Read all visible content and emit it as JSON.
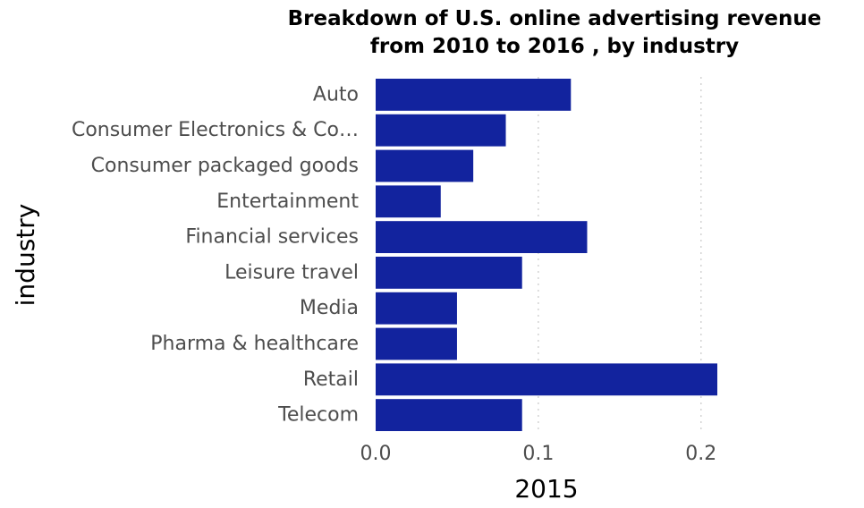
{
  "chart_data": {
    "type": "bar",
    "orientation": "horizontal",
    "title": "Breakdown of U.S. online advertising revenue from 2010 to 2016 , by industry",
    "title_lines": [
      "Breakdown of U.S. online advertising revenue",
      "from 2010 to 2016 , by industry"
    ],
    "xlabel": "2015",
    "ylabel": "industry",
    "categories": [
      "Auto",
      "Consumer Electronics & Co…",
      "Consumer packaged goods",
      "Entertainment",
      "Financial services",
      "Leisure travel",
      "Media",
      "Pharma & healthcare",
      "Retail",
      "Telecom"
    ],
    "values": [
      0.12,
      0.08,
      0.06,
      0.04,
      0.13,
      0.09,
      0.05,
      0.05,
      0.21,
      0.09
    ],
    "xlim": [
      0,
      0.21
    ],
    "xticks": [
      "0.0",
      "0.1",
      "0.2"
    ],
    "xtick_values": [
      0,
      0.1,
      0.2
    ],
    "grid": "vertical-dotted",
    "bar_color": "#12239e",
    "legend": "none"
  }
}
